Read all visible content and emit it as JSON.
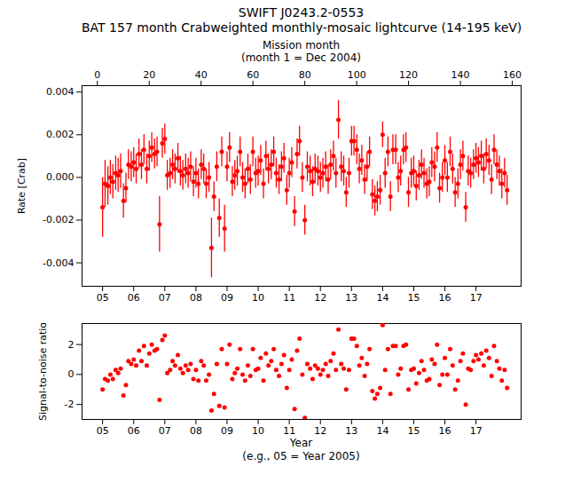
{
  "chart_data": [
    {
      "type": "scatter",
      "title": "SWIFT J0243.2-0553",
      "subtitle": "BAT 157 month Crabweighted monthly-mosaic lightcurve (14-195 keV)",
      "x2label": "Mission month\n(month 1 = Dec 2004)",
      "x2lim": [
        -5.9,
        163.4
      ],
      "x2ticks": [
        0,
        20,
        40,
        60,
        80,
        100,
        120,
        140,
        160
      ],
      "xlim": [
        2004.34,
        2018.45
      ],
      "xticks": [
        {
          "value": 2005,
          "label": "05"
        },
        {
          "value": 2006,
          "label": "06"
        },
        {
          "value": 2007,
          "label": "07"
        },
        {
          "value": 2008,
          "label": "08"
        },
        {
          "value": 2009,
          "label": "09"
        },
        {
          "value": 2010,
          "label": "10"
        },
        {
          "value": 2011,
          "label": "11"
        },
        {
          "value": 2012,
          "label": "12"
        },
        {
          "value": 2013,
          "label": "13"
        },
        {
          "value": 2014,
          "label": "14"
        },
        {
          "value": 2015,
          "label": "15"
        },
        {
          "value": 2016,
          "label": "16"
        },
        {
          "value": 2017,
          "label": "17"
        }
      ],
      "ylabel": "Rate [Crab]",
      "ylim": [
        -0.0051,
        0.0043
      ],
      "yticks": [
        -0.004,
        -0.002,
        {
          "value": 0,
          "label": "0.000"
        },
        0.002,
        0.004
      ],
      "color": "red",
      "marker": "o",
      "x": [
        2005,
        2005.08,
        2005.17,
        2005.25,
        2005.33,
        2005.42,
        2005.5,
        2005.58,
        2005.67,
        2005.75,
        2005.83,
        2005.92,
        2006,
        2006.08,
        2006.17,
        2006.25,
        2006.33,
        2006.42,
        2006.5,
        2006.58,
        2006.67,
        2006.75,
        2006.83,
        2006.92,
        2007,
        2007.08,
        2007.17,
        2007.25,
        2007.33,
        2007.42,
        2007.5,
        2007.58,
        2007.67,
        2007.75,
        2007.83,
        2007.92,
        2008,
        2008.08,
        2008.17,
        2008.25,
        2008.33,
        2008.42,
        2008.5,
        2008.58,
        2008.67,
        2008.75,
        2008.83,
        2008.92,
        2009,
        2009.08,
        2009.17,
        2009.25,
        2009.33,
        2009.42,
        2009.5,
        2009.58,
        2009.67,
        2009.75,
        2009.83,
        2009.92,
        2010,
        2010.08,
        2010.17,
        2010.25,
        2010.33,
        2010.42,
        2010.5,
        2010.58,
        2010.67,
        2010.75,
        2010.83,
        2010.92,
        2011,
        2011.08,
        2011.17,
        2011.25,
        2011.33,
        2011.42,
        2011.5,
        2011.58,
        2011.67,
        2011.75,
        2011.83,
        2011.92,
        2012,
        2012.08,
        2012.17,
        2012.25,
        2012.33,
        2012.42,
        2012.5,
        2012.58,
        2012.67,
        2012.75,
        2012.83,
        2012.92,
        2013,
        2013.08,
        2013.17,
        2013.25,
        2013.33,
        2013.42,
        2013.5,
        2013.58,
        2013.67,
        2013.75,
        2013.83,
        2013.92,
        2014,
        2014.08,
        2014.17,
        2014.25,
        2014.33,
        2014.42,
        2014.5,
        2014.58,
        2014.67,
        2014.75,
        2014.83,
        2014.92,
        2015,
        2015.08,
        2015.17,
        2015.25,
        2015.33,
        2015.42,
        2015.5,
        2015.58,
        2015.67,
        2015.75,
        2015.83,
        2015.92,
        2016,
        2016.08,
        2016.17,
        2016.25,
        2016.33,
        2016.42,
        2016.5,
        2016.58,
        2016.67,
        2016.75,
        2016.83,
        2016.92,
        2017,
        2017.08,
        2017.17,
        2017.25,
        2017.33,
        2017.42,
        2017.5,
        2017.58,
        2017.67,
        2017.75,
        2017.83,
        2017.92,
        2018
      ],
      "values": [
        -0.0014,
        -0.0003,
        -0.0004,
        0.0,
        -0.0002,
        0.0002,
        0.0001,
        0.0003,
        -0.0011,
        -0.0005,
        0.0006,
        0.0005,
        0.0007,
        0.0004,
        0.0011,
        0.0006,
        0.0013,
        0.0004,
        0.001,
        0.0014,
        0.0011,
        0.0012,
        -0.0022,
        0.0016,
        0.0018,
        0.0001,
        0.0002,
        0.0006,
        0.0004,
        0.0009,
        0.0003,
        0.0001,
        0.0004,
        0.0002,
        0.0005,
        -0.0002,
        0.0002,
        -0.0003,
        0.0006,
        0.0004,
        -0.0003,
        0.0,
        -0.0033,
        -0.0009,
        0.0005,
        -0.0019,
        0.0012,
        -0.0024,
        0.0005,
        0.0014,
        -0.0002,
        0.0001,
        0.0003,
        0.0012,
        0.0,
        -0.0003,
        0.0004,
        -0.0001,
        0.0012,
        0.0002,
        0.0003,
        0.0008,
        -0.0003,
        0.001,
        0.0004,
        0.0006,
        0.0012,
        0.0002,
        -0.0001,
        0.0005,
        0.0009,
        -0.0006,
        0.0002,
        0.0007,
        -0.0016,
        0.0011,
        0.0017,
        0.0,
        -0.002,
        0.0005,
        0.0003,
        -0.0002,
        0.0004,
        0.0003,
        0.0,
        0.0002,
        0.0005,
        -0.0001,
        0.0006,
        0.001,
        0.0002,
        0.0027,
        0.0005,
        0.0003,
        -0.0007,
        0.0002,
        0.0017,
        0.0017,
        0.0013,
        0.0004,
        0.0008,
        -0.0001,
        0.0005,
        0.0012,
        -0.0008,
        -0.0011,
        -0.0009,
        -0.0006,
        0.002,
        0.0002,
        0.0012,
        -0.0009,
        0.0013,
        0.0013,
        0.0,
        0.0003,
        0.0013,
        0.0014,
        -0.0007,
        0.0002,
        0.0003,
        -0.0004,
        0.0001,
        0.0006,
        0.0002,
        -0.0003,
        -0.0002,
        0.0007,
        0.0005,
        0.0014,
        -0.0005,
        0.0,
        0.0008,
        0.0,
        0.0012,
        0.0004,
        -0.0007,
        -0.0003,
        0.0006,
        0.001,
        -0.0014,
        0.0003,
        0.0002,
        0.0006,
        0.0009,
        0.0007,
        0.001,
        0.0004,
        0.0011,
        0.0008,
        -0.0001,
        0.0013,
        0.0006,
        0.0003,
        -0.0003,
        0.0002,
        -0.0006
      ],
      "errors": [
        0.0014,
        0.0011,
        0.0009,
        0.0008,
        0.0008,
        0.0008,
        0.0008,
        0.0008,
        0.0008,
        0.0007,
        0.0007,
        0.0007,
        0.0007,
        0.0007,
        0.0007,
        0.0007,
        0.0007,
        0.0007,
        0.0007,
        0.0007,
        0.0007,
        0.0007,
        0.0013,
        0.0007,
        0.0007,
        0.0007,
        0.0007,
        0.0007,
        0.0007,
        0.0007,
        0.0007,
        0.0007,
        0.0007,
        0.0007,
        0.0007,
        0.0007,
        0.0007,
        0.0007,
        0.0007,
        0.0007,
        0.0007,
        0.0007,
        0.0014,
        0.0007,
        0.0007,
        0.0009,
        0.0007,
        0.0011,
        0.0007,
        0.0007,
        0.0007,
        0.0007,
        0.0007,
        0.0007,
        0.0007,
        0.0007,
        0.0007,
        0.0007,
        0.0007,
        0.0007,
        0.0007,
        0.0007,
        0.0007,
        0.0007,
        0.0007,
        0.0007,
        0.0007,
        0.0007,
        0.0007,
        0.0007,
        0.0007,
        0.0007,
        0.0007,
        0.0007,
        0.0007,
        0.0007,
        0.0007,
        0.0007,
        0.0007,
        0.0007,
        0.0007,
        0.0007,
        0.0007,
        0.0007,
        0.0007,
        0.0007,
        0.0007,
        0.0007,
        0.0007,
        0.0007,
        0.0007,
        0.0009,
        0.0007,
        0.0007,
        0.0007,
        0.0007,
        0.0007,
        0.0007,
        0.0007,
        0.0007,
        0.0007,
        0.0007,
        0.0007,
        0.0007,
        0.0007,
        0.0007,
        0.0007,
        0.0007,
        0.0006,
        0.0007,
        0.0007,
        0.0007,
        0.0007,
        0.0007,
        0.0007,
        0.0007,
        0.0007,
        0.0007,
        0.0007,
        0.0007,
        0.0007,
        0.0007,
        0.0007,
        0.0007,
        0.0007,
        0.0007,
        0.0007,
        0.0007,
        0.0007,
        0.0007,
        0.0007,
        0.0007,
        0.0007,
        0.0007,
        0.0007,
        0.0007,
        0.0007,
        0.0007,
        0.0007,
        0.0007,
        0.0007,
        0.0007,
        0.0007,
        0.0007,
        0.0007,
        0.0007,
        0.0007,
        0.0007,
        0.0007,
        0.0007,
        0.0007,
        0.0007,
        0.0007,
        0.0007,
        0.0007,
        0.0007,
        0.0007
      ]
    },
    {
      "type": "scatter",
      "xlabel": "Year\n(e.g., 05 = Year 2005)",
      "xlim": [
        2004.34,
        2018.45
      ],
      "xticks": [
        {
          "value": 2005,
          "label": "05"
        },
        {
          "value": 2006,
          "label": "06"
        },
        {
          "value": 2007,
          "label": "07"
        },
        {
          "value": 2008,
          "label": "08"
        },
        {
          "value": 2009,
          "label": "09"
        },
        {
          "value": 2010,
          "label": "10"
        },
        {
          "value": 2011,
          "label": "11"
        },
        {
          "value": 2012,
          "label": "12"
        },
        {
          "value": 2013,
          "label": "13"
        },
        {
          "value": 2014,
          "label": "14"
        },
        {
          "value": 2015,
          "label": "15"
        },
        {
          "value": 2016,
          "label": "16"
        },
        {
          "value": 2017,
          "label": "17"
        }
      ],
      "ylabel": "Signal-to-noise ratio",
      "ylim": [
        -3.0,
        3.4
      ],
      "yticks": [
        -2,
        0,
        2
      ],
      "color": "red",
      "marker": "o",
      "x": [
        2005,
        2005.08,
        2005.17,
        2005.25,
        2005.33,
        2005.42,
        2005.5,
        2005.58,
        2005.67,
        2005.75,
        2005.83,
        2005.92,
        2006,
        2006.08,
        2006.17,
        2006.25,
        2006.33,
        2006.42,
        2006.5,
        2006.58,
        2006.67,
        2006.75,
        2006.83,
        2006.92,
        2007,
        2007.08,
        2007.17,
        2007.25,
        2007.33,
        2007.42,
        2007.5,
        2007.58,
        2007.67,
        2007.75,
        2007.83,
        2007.92,
        2008,
        2008.08,
        2008.17,
        2008.25,
        2008.33,
        2008.42,
        2008.5,
        2008.58,
        2008.67,
        2008.75,
        2008.83,
        2008.92,
        2009,
        2009.08,
        2009.17,
        2009.25,
        2009.33,
        2009.42,
        2009.5,
        2009.58,
        2009.67,
        2009.75,
        2009.83,
        2009.92,
        2010,
        2010.08,
        2010.17,
        2010.25,
        2010.33,
        2010.42,
        2010.5,
        2010.58,
        2010.67,
        2010.75,
        2010.83,
        2010.92,
        2011,
        2011.08,
        2011.17,
        2011.25,
        2011.33,
        2011.42,
        2011.5,
        2011.58,
        2011.67,
        2011.75,
        2011.83,
        2011.92,
        2012,
        2012.08,
        2012.17,
        2012.25,
        2012.33,
        2012.42,
        2012.5,
        2012.58,
        2012.67,
        2012.75,
        2012.83,
        2012.92,
        2013,
        2013.08,
        2013.17,
        2013.25,
        2013.33,
        2013.42,
        2013.5,
        2013.58,
        2013.67,
        2013.75,
        2013.83,
        2013.92,
        2014,
        2014.08,
        2014.17,
        2014.25,
        2014.33,
        2014.42,
        2014.5,
        2014.58,
        2014.67,
        2014.75,
        2014.83,
        2014.92,
        2015,
        2015.08,
        2015.17,
        2015.25,
        2015.33,
        2015.42,
        2015.5,
        2015.58,
        2015.67,
        2015.75,
        2015.83,
        2015.92,
        2016,
        2016.08,
        2016.17,
        2016.25,
        2016.33,
        2016.42,
        2016.5,
        2016.58,
        2016.67,
        2016.75,
        2016.83,
        2016.92,
        2017,
        2017.08,
        2017.17,
        2017.25,
        2017.33,
        2017.42,
        2017.5,
        2017.58,
        2017.67,
        2017.75,
        2017.83,
        2017.92,
        2018
      ],
      "values": [
        -1.0,
        -0.3,
        -0.4,
        0.0,
        -0.3,
        0.3,
        0.1,
        0.4,
        -1.4,
        -0.7,
        0.9,
        0.7,
        1.0,
        0.6,
        1.6,
        0.9,
        1.9,
        0.6,
        1.4,
        2.0,
        1.6,
        1.7,
        -1.7,
        2.3,
        2.6,
        0.1,
        0.3,
        0.9,
        0.6,
        1.3,
        0.4,
        0.1,
        0.6,
        0.3,
        0.7,
        -0.3,
        0.3,
        -0.4,
        0.9,
        0.6,
        -0.4,
        0.0,
        -2.4,
        -1.3,
        0.7,
        -2.1,
        1.7,
        -2.2,
        0.7,
        2.0,
        -0.3,
        0.1,
        0.4,
        1.7,
        0.0,
        -0.4,
        0.6,
        -0.1,
        1.7,
        0.3,
        0.4,
        1.1,
        -0.4,
        1.4,
        0.6,
        0.9,
        1.7,
        0.3,
        -0.1,
        0.7,
        1.3,
        -0.9,
        0.3,
        1.0,
        -2.3,
        1.6,
        2.4,
        0.0,
        -2.9,
        0.7,
        0.4,
        -0.3,
        0.6,
        0.4,
        0.0,
        0.3,
        0.7,
        -0.1,
        0.9,
        1.4,
        0.3,
        3.0,
        0.7,
        0.4,
        -1.0,
        0.3,
        2.4,
        2.4,
        1.9,
        0.6,
        1.1,
        -0.1,
        0.7,
        1.7,
        -1.1,
        -1.6,
        -1.3,
        -0.9,
        3.3,
        0.3,
        1.7,
        -1.3,
        1.9,
        1.9,
        0.0,
        0.4,
        1.9,
        2.0,
        -1.0,
        0.3,
        0.4,
        -0.6,
        0.1,
        0.9,
        0.3,
        -0.4,
        -0.3,
        1.0,
        0.7,
        2.0,
        -0.7,
        0.0,
        1.1,
        0.0,
        1.7,
        0.6,
        -1.0,
        -0.4,
        0.9,
        1.4,
        -2.0,
        0.4,
        0.3,
        0.9,
        1.3,
        1.0,
        1.4,
        0.6,
        1.6,
        1.1,
        -0.1,
        1.9,
        0.9,
        0.4,
        -0.4,
        0.3,
        -0.9
      ]
    }
  ]
}
